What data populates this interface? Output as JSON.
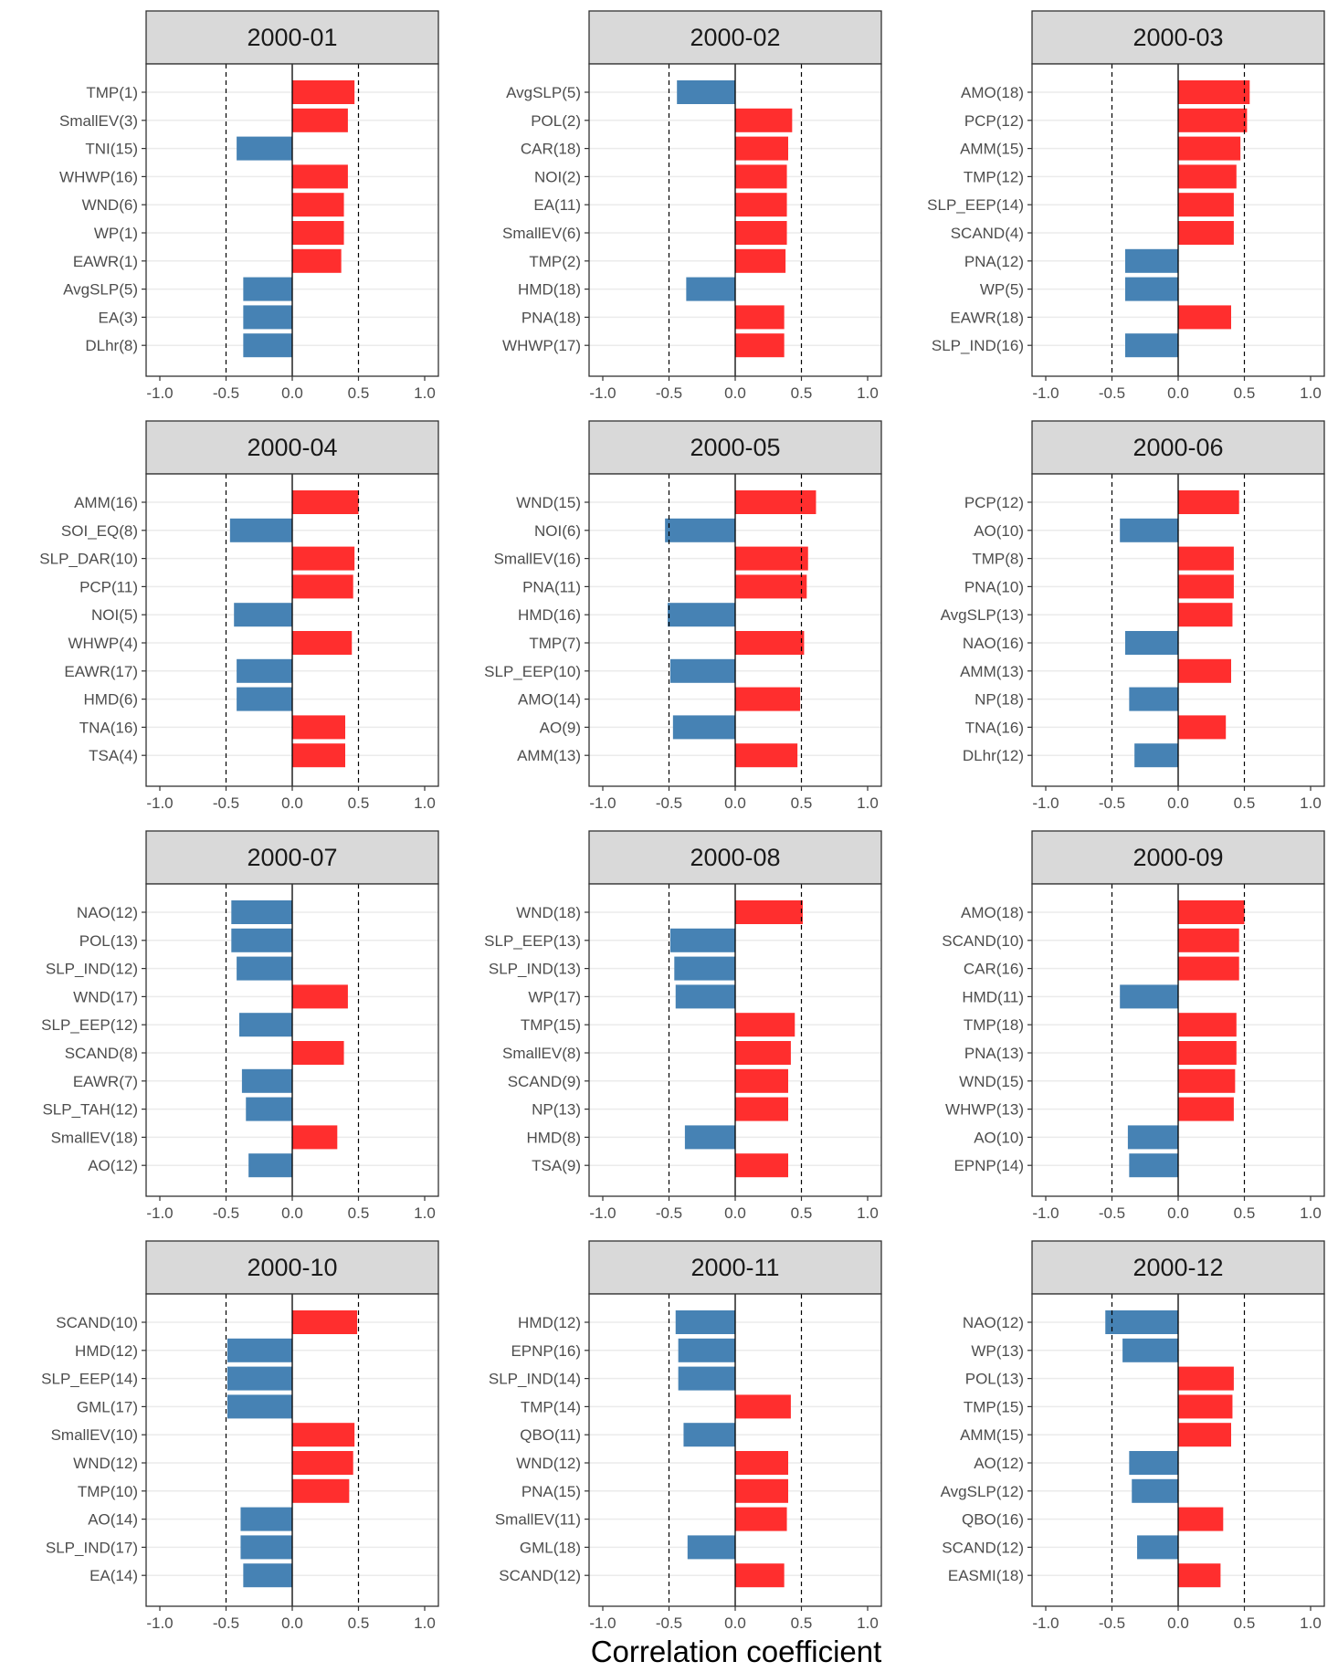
{
  "chart_data": {
    "type": "bar",
    "orientation": "horizontal",
    "xlabel": "Correlation coefficient",
    "xlim": [
      -1.0,
      1.0
    ],
    "xticks": [
      -1.0,
      -0.5,
      0.0,
      0.5,
      1.0
    ],
    "xtick_labels": [
      "-1.0",
      "-0.5",
      "0.0",
      "0.5",
      "1.0"
    ],
    "reference_lines": [
      -0.5,
      0.5
    ],
    "colors": {
      "positive": "#ff2e2e",
      "negative": "#4682b4",
      "strip": "#d9d9d9"
    },
    "panels": [
      {
        "title": "2000-01",
        "categories": [
          "TMP(1)",
          "SmallEV(3)",
          "TNI(15)",
          "WHWP(16)",
          "WND(6)",
          "WP(1)",
          "EAWR(1)",
          "AvgSLP(5)",
          "EA(3)",
          "DLhr(8)"
        ],
        "values": [
          0.47,
          0.42,
          -0.42,
          0.42,
          0.39,
          0.39,
          0.37,
          -0.37,
          -0.37,
          -0.37
        ]
      },
      {
        "title": "2000-02",
        "categories": [
          "AvgSLP(5)",
          "POL(2)",
          "CAR(18)",
          "NOI(2)",
          "EA(11)",
          "SmallEV(6)",
          "TMP(2)",
          "HMD(18)",
          "PNA(18)",
          "WHWP(17)"
        ],
        "values": [
          -0.44,
          0.43,
          0.4,
          0.39,
          0.39,
          0.39,
          0.38,
          -0.37,
          0.37,
          0.37
        ]
      },
      {
        "title": "2000-03",
        "categories": [
          "AMO(18)",
          "PCP(12)",
          "AMM(15)",
          "TMP(12)",
          "SLP_EEP(14)",
          "SCAND(4)",
          "PNA(12)",
          "WP(5)",
          "EAWR(18)",
          "SLP_IND(16)"
        ],
        "values": [
          0.54,
          0.52,
          0.47,
          0.44,
          0.42,
          0.42,
          -0.4,
          -0.4,
          0.4,
          -0.4
        ]
      },
      {
        "title": "2000-04",
        "categories": [
          "AMM(16)",
          "SOI_EQ(8)",
          "SLP_DAR(10)",
          "PCP(11)",
          "NOI(5)",
          "WHWP(4)",
          "EAWR(17)",
          "HMD(6)",
          "TNA(16)",
          "TSA(4)"
        ],
        "values": [
          0.5,
          -0.47,
          0.47,
          0.46,
          -0.44,
          0.45,
          -0.42,
          -0.42,
          0.4,
          0.4
        ]
      },
      {
        "title": "2000-05",
        "categories": [
          "WND(15)",
          "NOI(6)",
          "SmallEV(16)",
          "PNA(11)",
          "HMD(16)",
          "TMP(7)",
          "SLP_EEP(10)",
          "AMO(14)",
          "AO(9)",
          "AMM(13)"
        ],
        "values": [
          0.61,
          -0.53,
          0.55,
          0.54,
          -0.51,
          0.52,
          -0.49,
          0.49,
          -0.47,
          0.47
        ]
      },
      {
        "title": "2000-06",
        "categories": [
          "PCP(12)",
          "AO(10)",
          "TMP(8)",
          "PNA(10)",
          "AvgSLP(13)",
          "NAO(16)",
          "AMM(13)",
          "NP(18)",
          "TNA(16)",
          "DLhr(12)"
        ],
        "values": [
          0.46,
          -0.44,
          0.42,
          0.42,
          0.41,
          -0.4,
          0.4,
          -0.37,
          0.36,
          -0.33
        ]
      },
      {
        "title": "2000-07",
        "categories": [
          "NAO(12)",
          "POL(13)",
          "SLP_IND(12)",
          "WND(17)",
          "SLP_EEP(12)",
          "SCAND(8)",
          "EAWR(7)",
          "SLP_TAH(12)",
          "SmallEV(18)",
          "AO(12)"
        ],
        "values": [
          -0.46,
          -0.46,
          -0.42,
          0.42,
          -0.4,
          0.39,
          -0.38,
          -0.35,
          0.34,
          -0.33
        ]
      },
      {
        "title": "2000-08",
        "categories": [
          "WND(18)",
          "SLP_EEP(13)",
          "SLP_IND(13)",
          "WP(17)",
          "TMP(15)",
          "SmallEV(8)",
          "SCAND(9)",
          "NP(13)",
          "HMD(8)",
          "TSA(9)"
        ],
        "values": [
          0.51,
          -0.49,
          -0.46,
          -0.45,
          0.45,
          0.42,
          0.4,
          0.4,
          -0.38,
          0.4
        ]
      },
      {
        "title": "2000-09",
        "categories": [
          "AMO(18)",
          "SCAND(10)",
          "CAR(16)",
          "HMD(11)",
          "TMP(18)",
          "PNA(13)",
          "WND(15)",
          "WHWP(13)",
          "AO(10)",
          "EPNP(14)"
        ],
        "values": [
          0.5,
          0.46,
          0.46,
          -0.44,
          0.44,
          0.44,
          0.43,
          0.42,
          -0.38,
          -0.37
        ]
      },
      {
        "title": "2000-10",
        "categories": [
          "SCAND(10)",
          "HMD(12)",
          "SLP_EEP(14)",
          "GML(17)",
          "SmallEV(10)",
          "WND(12)",
          "TMP(10)",
          "AO(14)",
          "SLP_IND(17)",
          "EA(14)"
        ],
        "values": [
          0.49,
          -0.49,
          -0.49,
          -0.49,
          0.47,
          0.46,
          0.43,
          -0.39,
          -0.39,
          -0.37
        ]
      },
      {
        "title": "2000-11",
        "categories": [
          "HMD(12)",
          "EPNP(16)",
          "SLP_IND(14)",
          "TMP(14)",
          "QBO(11)",
          "WND(12)",
          "PNA(15)",
          "SmallEV(11)",
          "GML(18)",
          "SCAND(12)"
        ],
        "values": [
          -0.45,
          -0.43,
          -0.43,
          0.42,
          -0.39,
          0.4,
          0.4,
          0.39,
          -0.36,
          0.37
        ]
      },
      {
        "title": "2000-12",
        "categories": [
          "NAO(12)",
          "WP(13)",
          "POL(13)",
          "TMP(15)",
          "AMM(15)",
          "AO(12)",
          "AvgSLP(12)",
          "QBO(16)",
          "SCAND(12)",
          "EASMI(18)"
        ],
        "values": [
          -0.55,
          -0.42,
          0.42,
          0.41,
          0.4,
          -0.37,
          -0.35,
          0.34,
          -0.31,
          0.32
        ]
      }
    ]
  }
}
